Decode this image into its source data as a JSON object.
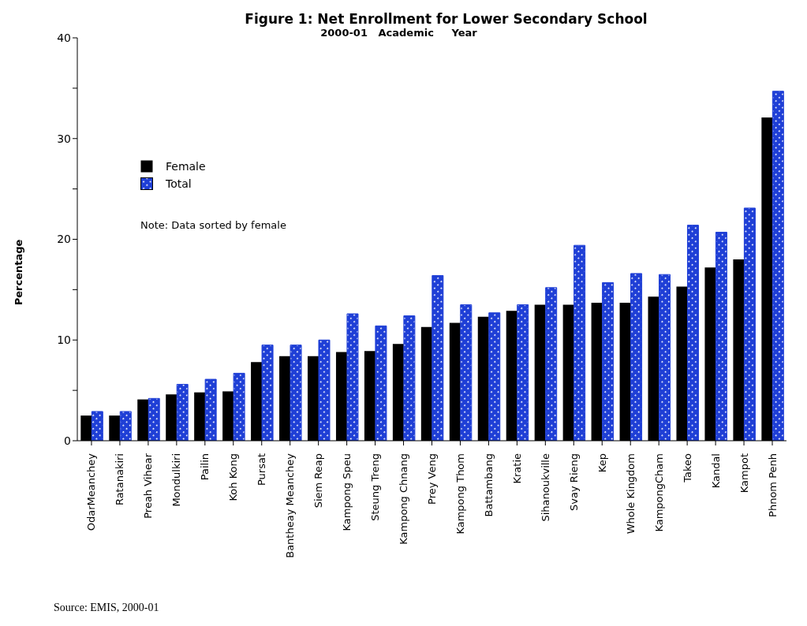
{
  "chart_data": {
    "type": "bar",
    "title": "Figure 1: Net Enrollment for Lower Secondary School",
    "subtitle": "2000-01   Academic     Year",
    "ylabel": "Percentage",
    "categories": [
      "OdarMeanchey",
      "Ratanakiri",
      "Preah  Vihear",
      "Mondulkiri",
      "Pailin",
      "Koh Kong",
      "Pursat",
      "Bantheay Meanchey",
      "Siem Reap",
      "Kampong Speu",
      "Steung Treng",
      "Kampong Chnang",
      "Prey Veng",
      "Kampong Thom",
      "Battambang",
      "Kratie",
      "Sihanoukville",
      "Svay  Rieng",
      "Kep",
      "Whole Kingdom",
      "KampongCham",
      "Takeo",
      "Kandal",
      "Kampot",
      "Phnom Penh"
    ],
    "series": [
      {
        "name": "Female",
        "color": "#000000",
        "values": [
          2.5,
          2.5,
          4.1,
          4.6,
          4.8,
          4.9,
          7.8,
          8.4,
          8.4,
          8.8,
          8.9,
          9.6,
          11.3,
          11.7,
          12.3,
          12.9,
          13.5,
          13.5,
          13.7,
          13.7,
          14.3,
          15.3,
          17.2,
          18.0,
          32.1
        ]
      },
      {
        "name": "Total",
        "color": "#1f3fd6",
        "values": [
          2.9,
          2.9,
          4.2,
          5.6,
          6.1,
          6.7,
          9.5,
          9.5,
          10.0,
          12.6,
          11.4,
          12.4,
          16.4,
          13.5,
          12.7,
          13.5,
          15.2,
          19.4,
          15.7,
          16.6,
          16.5,
          21.4,
          20.7,
          23.1,
          34.7
        ]
      }
    ],
    "ylim": [
      0,
      40
    ],
    "yticks": [
      0,
      {
        "value": 5,
        "label": null
      },
      10,
      {
        "value": 15,
        "label": null
      },
      20,
      {
        "value": 25,
        "label": null
      },
      30,
      {
        "value": 35,
        "label": null
      },
      40
    ],
    "grid": false,
    "legend": "top left",
    "annotations": [
      "Note: Data sorted by female",
      "Source: EMIS, 2000-01"
    ]
  }
}
